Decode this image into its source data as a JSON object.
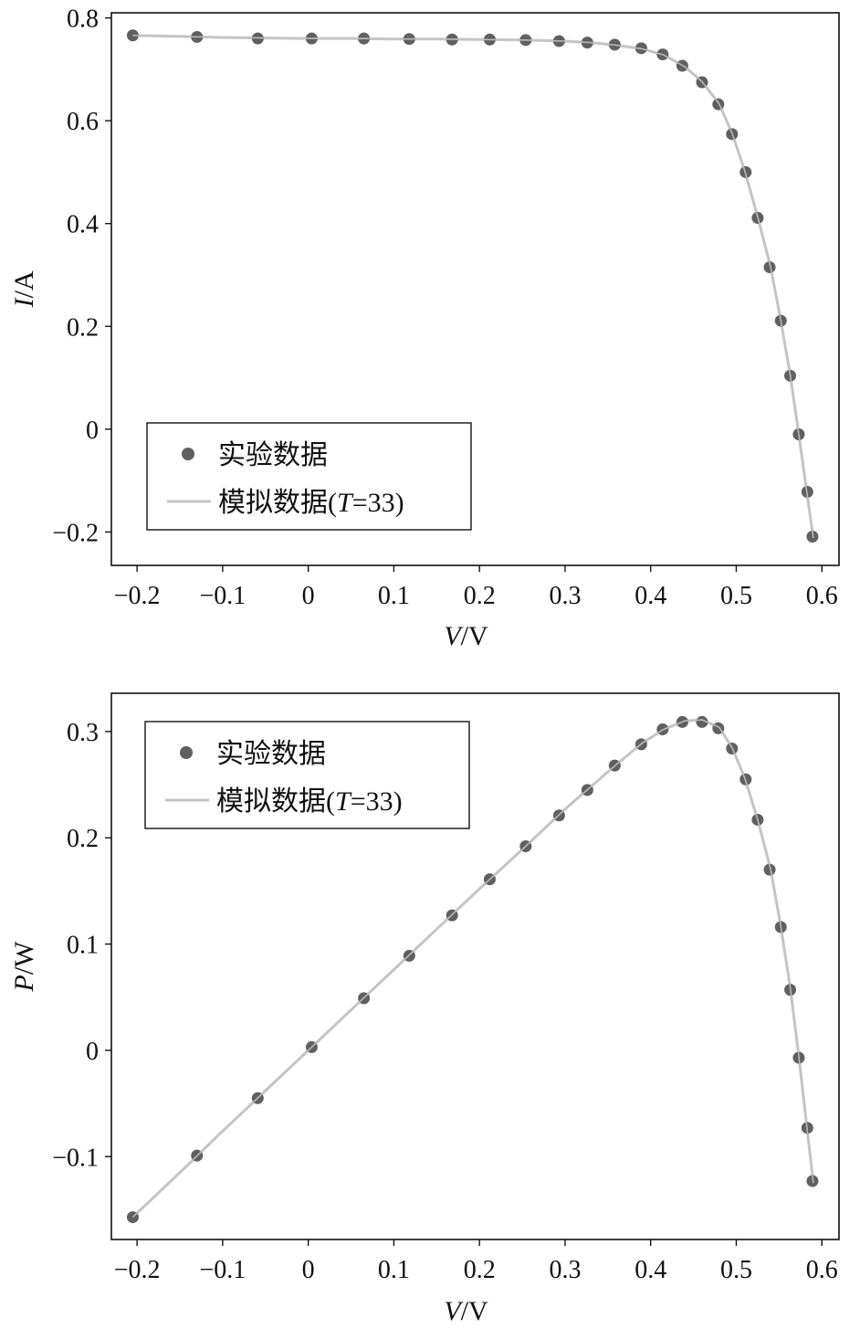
{
  "chart_data": [
    {
      "type": "scatter",
      "xlabel": {
        "var": "V",
        "unit": "/V"
      },
      "ylabel": {
        "var": "I",
        "unit": "/A"
      },
      "xlim": [
        -0.23,
        0.62
      ],
      "ylim": [
        -0.265,
        0.81
      ],
      "xticks": [
        -0.2,
        -0.1,
        0,
        0.1,
        0.2,
        0.3,
        0.4,
        0.5,
        0.6
      ],
      "xtick_labels": [
        "−0.2",
        "−0.1",
        "0",
        "0.1",
        "0.2",
        "0.3",
        "0.4",
        "0.5",
        "0.6"
      ],
      "yticks": [
        -0.2,
        0,
        0.2,
        0.4,
        0.6,
        0.8
      ],
      "ytick_labels": [
        "−0.2",
        "0",
        "0.2",
        "0.4",
        "0.6",
        "0.8"
      ],
      "grid": false,
      "legend_position": "bottom-left",
      "series": [
        {
          "name": "实验数据",
          "kind": "points",
          "color": "#606060",
          "x": [
            -0.205,
            -0.13,
            -0.059,
            0.004,
            0.065,
            0.118,
            0.168,
            0.212,
            0.254,
            0.293,
            0.326,
            0.358,
            0.389,
            0.414,
            0.437,
            0.46,
            0.479,
            0.495,
            0.511,
            0.525,
            0.539,
            0.552,
            0.563,
            0.573,
            0.583,
            0.589
          ],
          "y": [
            0.766,
            0.763,
            0.76,
            0.76,
            0.76,
            0.759,
            0.758,
            0.758,
            0.757,
            0.755,
            0.752,
            0.748,
            0.741,
            0.729,
            0.707,
            0.675,
            0.632,
            0.574,
            0.5,
            0.411,
            0.315,
            0.211,
            0.104,
            -0.01,
            -0.122,
            -0.209
          ]
        },
        {
          "name": "模拟数据",
          "name_suffix": {
            "open": "(",
            "var": "T",
            "rest": "=33)"
          },
          "kind": "line",
          "color": "#c4c4c4",
          "x": [
            -0.205,
            -0.15,
            -0.1,
            -0.05,
            0.0,
            0.05,
            0.1,
            0.15,
            0.2,
            0.25,
            0.3,
            0.33,
            0.36,
            0.39,
            0.415,
            0.44,
            0.46,
            0.48,
            0.495,
            0.51,
            0.525,
            0.54,
            0.552,
            0.563,
            0.573,
            0.582,
            0.59
          ],
          "y": [
            0.766,
            0.764,
            0.762,
            0.761,
            0.76,
            0.76,
            0.759,
            0.759,
            0.758,
            0.757,
            0.755,
            0.752,
            0.747,
            0.74,
            0.728,
            0.705,
            0.676,
            0.633,
            0.576,
            0.502,
            0.413,
            0.316,
            0.212,
            0.105,
            -0.009,
            -0.118,
            -0.212
          ]
        }
      ]
    },
    {
      "type": "scatter",
      "xlabel": {
        "var": "V",
        "unit": "/V"
      },
      "ylabel": {
        "var": "P",
        "unit": "/W"
      },
      "xlim": [
        -0.23,
        0.62
      ],
      "ylim": [
        -0.178,
        0.336
      ],
      "xticks": [
        -0.2,
        -0.1,
        0,
        0.1,
        0.2,
        0.3,
        0.4,
        0.5,
        0.6
      ],
      "xtick_labels": [
        "−0.2",
        "−0.1",
        "0",
        "0.1",
        "0.2",
        "0.3",
        "0.4",
        "0.5",
        "0.6"
      ],
      "yticks": [
        -0.1,
        0,
        0.1,
        0.2,
        0.3
      ],
      "ytick_labels": [
        "−0.1",
        "0",
        "0.1",
        "0.2",
        "0.3"
      ],
      "grid": false,
      "legend_position": "top-left",
      "series": [
        {
          "name": "实验数据",
          "kind": "points",
          "color": "#606060",
          "x": [
            -0.205,
            -0.13,
            -0.059,
            0.004,
            0.065,
            0.118,
            0.168,
            0.212,
            0.254,
            0.293,
            0.326,
            0.358,
            0.389,
            0.414,
            0.437,
            0.46,
            0.479,
            0.495,
            0.511,
            0.525,
            0.539,
            0.552,
            0.563,
            0.573,
            0.583,
            0.589
          ],
          "y": [
            -0.157,
            -0.099,
            -0.045,
            0.003,
            0.049,
            0.089,
            0.127,
            0.161,
            0.192,
            0.221,
            0.245,
            0.268,
            0.288,
            0.302,
            0.309,
            0.309,
            0.303,
            0.284,
            0.255,
            0.217,
            0.17,
            0.116,
            0.057,
            -0.007,
            -0.073,
            -0.123
          ]
        },
        {
          "name": "模拟数据",
          "name_suffix": {
            "open": "(",
            "var": "T",
            "rest": "=33)"
          },
          "kind": "line",
          "color": "#c4c4c4",
          "x": [
            -0.205,
            -0.15,
            -0.1,
            -0.05,
            0.0,
            0.05,
            0.1,
            0.15,
            0.2,
            0.25,
            0.3,
            0.33,
            0.36,
            0.39,
            0.415,
            0.44,
            0.46,
            0.48,
            0.495,
            0.51,
            0.525,
            0.54,
            0.552,
            0.563,
            0.573,
            0.582,
            0.59
          ],
          "y": [
            -0.157,
            -0.115,
            -0.076,
            -0.038,
            0.0,
            0.038,
            0.076,
            0.114,
            0.152,
            0.189,
            0.227,
            0.248,
            0.269,
            0.289,
            0.302,
            0.31,
            0.311,
            0.304,
            0.285,
            0.256,
            0.217,
            0.171,
            0.117,
            0.059,
            -0.005,
            -0.069,
            -0.125
          ]
        }
      ]
    }
  ]
}
